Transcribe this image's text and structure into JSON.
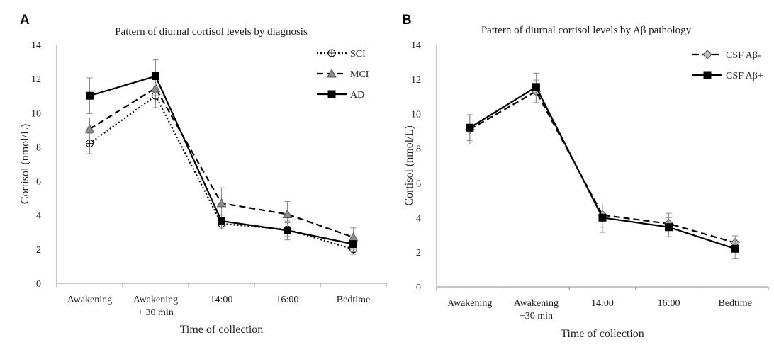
{
  "panels": [
    {
      "letter": "A",
      "chart_data": {
        "type": "line",
        "title": "Pattern of diurnal cortisol levels by diagnosis",
        "xlabel": "Time of collection",
        "ylabel": "Cortisol (nmol/L)",
        "categories": [
          [
            "Awakening"
          ],
          [
            "Awakening",
            "+ 30 min"
          ],
          [
            "14:00"
          ],
          [
            "16:00"
          ],
          [
            "Bedtime"
          ]
        ],
        "ylim": [
          0,
          14
        ],
        "yticks": [
          0,
          2,
          4,
          6,
          8,
          10,
          12,
          14
        ],
        "legend_position": "top-right",
        "series": [
          {
            "name": "SCI",
            "dash": "dotted",
            "marker": "circle-plus",
            "color": "#000000",
            "values": [
              8.2,
              11.0,
              3.5,
              3.15,
              2.0
            ],
            "err": [
              0.6,
              0.7,
              0.3,
              0.4,
              0.3
            ]
          },
          {
            "name": "MCI",
            "dash": "dashed",
            "marker": "triangle",
            "color": "#000000",
            "marker_color": "#8c8c8c",
            "values": [
              9.05,
              11.45,
              4.7,
              4.05,
              2.7
            ],
            "err": [
              0.65,
              0.6,
              0.9,
              0.75,
              0.55
            ]
          },
          {
            "name": "AD",
            "dash": "solid",
            "marker": "square",
            "color": "#000000",
            "values": [
              11.0,
              12.15,
              3.65,
              3.1,
              2.3
            ],
            "err": [
              1.05,
              0.95,
              0.35,
              0.55,
              0.45
            ]
          }
        ]
      }
    },
    {
      "letter": "B",
      "chart_data": {
        "type": "line",
        "title": "Pattern of diurnal cortisol levels by Aβ pathology",
        "xlabel": "Time of collection",
        "ylabel": "Cortisol (nmol/L)",
        "categories": [
          [
            "Awakening"
          ],
          [
            "Awakening",
            "+30 min"
          ],
          [
            "14:00"
          ],
          [
            "16:00"
          ],
          [
            "Bedtime"
          ]
        ],
        "ylim": [
          0,
          14
        ],
        "yticks": [
          0,
          2,
          4,
          6,
          8,
          10,
          12,
          14
        ],
        "legend_position": "top-right",
        "series": [
          {
            "name": "CSF Aβ-",
            "dash": "dashed",
            "marker": "diamond",
            "color": "#000000",
            "marker_color": "#bdbdbd",
            "values": [
              9.1,
              11.3,
              4.15,
              3.65,
              2.55
            ],
            "err": [
              0.85,
              0.65,
              0.7,
              0.6,
              0.4
            ]
          },
          {
            "name": "CSF Aβ+",
            "dash": "solid",
            "marker": "square",
            "color": "#000000",
            "values": [
              9.2,
              11.55,
              4.0,
              3.45,
              2.2
            ],
            "err": [
              0.75,
              0.8,
              0.85,
              0.55,
              0.55
            ]
          }
        ]
      }
    }
  ]
}
